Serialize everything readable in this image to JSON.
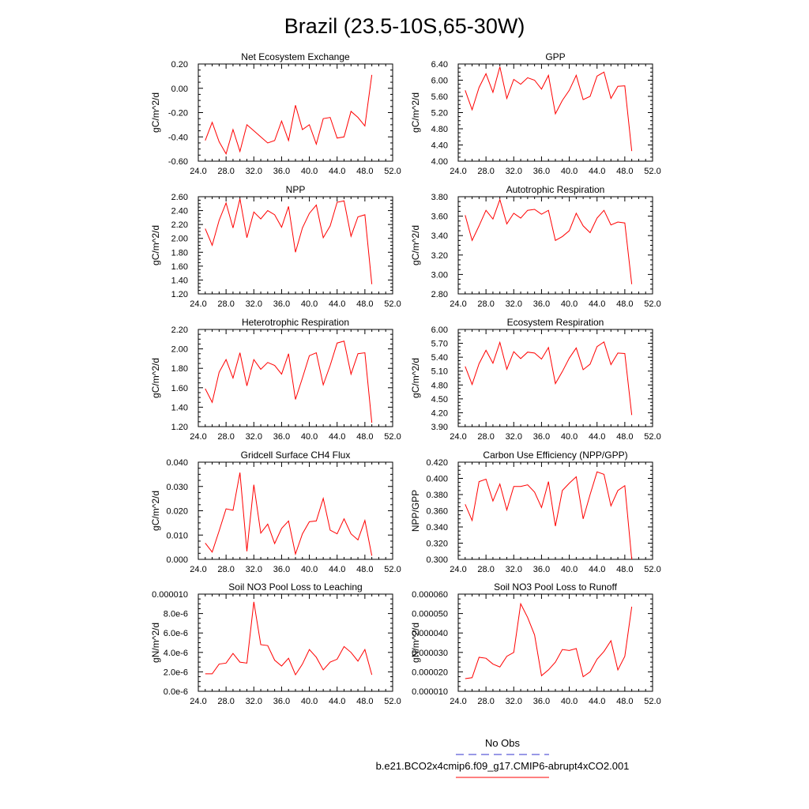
{
  "page": {
    "title": "Brazil (23.5-10S,65-30W)"
  },
  "legend": {
    "obs_label": "No Obs",
    "obs_color": "#3333cc",
    "model_label": "b.e21.BCO2x4cmip6.f09_g17.CMIP6-abrupt4xCO2.001",
    "model_color": "#ff0000"
  },
  "chart_data": [
    {
      "type": "line",
      "title": "Net Ecosystem Exchange",
      "ylabel": "gC/m^2/d",
      "xlabel": "",
      "xlim": [
        24,
        52
      ],
      "ylim": [
        -0.6,
        0.2
      ],
      "xticks": [
        "24.0",
        "28.0",
        "32.0",
        "36.0",
        "40.0",
        "44.0",
        "48.0",
        "52.0"
      ],
      "yticks": [
        "-0.60",
        "-0.40",
        "-0.20",
        "0.00",
        "0.20"
      ],
      "x": [
        25,
        26,
        27,
        28,
        29,
        30,
        31,
        32,
        33,
        34,
        35,
        36,
        37,
        38,
        39,
        40,
        41,
        42,
        43,
        44,
        45,
        46,
        47,
        48,
        49
      ],
      "series": [
        {
          "color": "#ff0000",
          "values": [
            -0.43,
            -0.28,
            -0.44,
            -0.54,
            -0.34,
            -0.52,
            -0.3,
            -0.35,
            -0.4,
            -0.45,
            -0.43,
            -0.27,
            -0.43,
            -0.14,
            -0.34,
            -0.3,
            -0.46,
            -0.25,
            -0.24,
            -0.41,
            -0.4,
            -0.19,
            -0.24,
            -0.31,
            0.11
          ]
        }
      ]
    },
    {
      "type": "line",
      "title": "GPP",
      "ylabel": "gC/m^2/d",
      "xlabel": "",
      "xlim": [
        24,
        52
      ],
      "ylim": [
        4.0,
        6.4
      ],
      "xticks": [
        "24.0",
        "28.0",
        "32.0",
        "36.0",
        "40.0",
        "44.0",
        "48.0",
        "52.0"
      ],
      "yticks": [
        "4.00",
        "4.40",
        "4.80",
        "5.20",
        "5.60",
        "6.00",
        "6.40"
      ],
      "x": [
        25,
        26,
        27,
        28,
        29,
        30,
        31,
        32,
        33,
        34,
        35,
        36,
        37,
        38,
        39,
        40,
        41,
        42,
        43,
        44,
        45,
        46,
        47,
        48,
        49
      ],
      "series": [
        {
          "color": "#ff0000",
          "values": [
            5.75,
            5.27,
            5.82,
            6.16,
            5.7,
            6.33,
            5.55,
            6.02,
            5.9,
            6.06,
            6.0,
            5.78,
            6.12,
            5.17,
            5.5,
            5.75,
            6.12,
            5.52,
            5.6,
            6.1,
            6.2,
            5.55,
            5.85,
            5.86,
            4.25
          ]
        }
      ]
    },
    {
      "type": "line",
      "title": "NPP",
      "ylabel": "gC/m^2/d",
      "xlabel": "",
      "xlim": [
        24,
        52
      ],
      "ylim": [
        1.2,
        2.6
      ],
      "xticks": [
        "24.0",
        "28.0",
        "32.0",
        "36.0",
        "40.0",
        "44.0",
        "48.0",
        "52.0"
      ],
      "yticks": [
        "1.20",
        "1.40",
        "1.60",
        "1.80",
        "2.00",
        "2.20",
        "2.40",
        "2.60"
      ],
      "x": [
        25,
        26,
        27,
        28,
        29,
        30,
        31,
        32,
        33,
        34,
        35,
        36,
        37,
        38,
        39,
        40,
        41,
        42,
        43,
        44,
        45,
        46,
        47,
        48,
        49
      ],
      "series": [
        {
          "color": "#ff0000",
          "values": [
            2.14,
            1.9,
            2.26,
            2.51,
            2.15,
            2.57,
            2.01,
            2.38,
            2.28,
            2.4,
            2.34,
            2.16,
            2.46,
            1.8,
            2.15,
            2.36,
            2.48,
            2.01,
            2.18,
            2.52,
            2.54,
            2.03,
            2.31,
            2.34,
            1.34
          ]
        }
      ]
    },
    {
      "type": "line",
      "title": "Autotrophic Respiration",
      "ylabel": "gC/m^2/d",
      "xlabel": "",
      "xlim": [
        24,
        52
      ],
      "ylim": [
        2.8,
        3.8
      ],
      "xticks": [
        "24.0",
        "28.0",
        "32.0",
        "36.0",
        "40.0",
        "44.0",
        "48.0",
        "52.0"
      ],
      "yticks": [
        "2.80",
        "3.00",
        "3.20",
        "3.40",
        "3.60",
        "3.80"
      ],
      "x": [
        25,
        26,
        27,
        28,
        29,
        30,
        31,
        32,
        33,
        34,
        35,
        36,
        37,
        38,
        39,
        40,
        41,
        42,
        43,
        44,
        45,
        46,
        47,
        48,
        49
      ],
      "series": [
        {
          "color": "#ff0000",
          "values": [
            3.61,
            3.35,
            3.5,
            3.66,
            3.57,
            3.77,
            3.52,
            3.63,
            3.58,
            3.66,
            3.67,
            3.62,
            3.66,
            3.35,
            3.39,
            3.45,
            3.63,
            3.5,
            3.43,
            3.58,
            3.66,
            3.51,
            3.54,
            3.53,
            2.9
          ]
        }
      ]
    },
    {
      "type": "line",
      "title": "Heterotrophic Respiration",
      "ylabel": "gC/m^2/d",
      "xlabel": "",
      "xlim": [
        24,
        52
      ],
      "ylim": [
        1.2,
        2.2
      ],
      "xticks": [
        "24.0",
        "28.0",
        "32.0",
        "36.0",
        "40.0",
        "44.0",
        "48.0",
        "52.0"
      ],
      "yticks": [
        "1.20",
        "1.40",
        "1.60",
        "1.80",
        "2.00",
        "2.20"
      ],
      "x": [
        25,
        26,
        27,
        28,
        29,
        30,
        31,
        32,
        33,
        34,
        35,
        36,
        37,
        38,
        39,
        40,
        41,
        42,
        43,
        44,
        45,
        46,
        47,
        48,
        49
      ],
      "series": [
        {
          "color": "#ff0000",
          "values": [
            1.59,
            1.45,
            1.76,
            1.89,
            1.7,
            1.96,
            1.62,
            1.89,
            1.79,
            1.86,
            1.83,
            1.74,
            1.95,
            1.48,
            1.7,
            1.93,
            1.96,
            1.63,
            1.83,
            2.06,
            2.08,
            1.74,
            1.95,
            1.96,
            1.24
          ]
        }
      ]
    },
    {
      "type": "line",
      "title": "Ecosystem Respiration",
      "ylabel": "gC/m^2/d",
      "xlabel": "",
      "xlim": [
        24,
        52
      ],
      "ylim": [
        3.9,
        6.0
      ],
      "xticks": [
        "24.0",
        "28.0",
        "32.0",
        "36.0",
        "40.0",
        "44.0",
        "48.0",
        "52.0"
      ],
      "yticks": [
        "3.90",
        "4.20",
        "4.50",
        "4.80",
        "5.10",
        "5.40",
        "5.70",
        "6.00"
      ],
      "x": [
        25,
        26,
        27,
        28,
        29,
        30,
        31,
        32,
        33,
        34,
        35,
        36,
        37,
        38,
        39,
        40,
        41,
        42,
        43,
        44,
        45,
        46,
        47,
        48,
        49
      ],
      "series": [
        {
          "color": "#ff0000",
          "values": [
            5.2,
            4.81,
            5.26,
            5.55,
            5.27,
            5.72,
            5.14,
            5.52,
            5.37,
            5.51,
            5.49,
            5.36,
            5.61,
            4.83,
            5.09,
            5.38,
            5.6,
            5.13,
            5.25,
            5.63,
            5.73,
            5.24,
            5.49,
            5.48,
            4.15
          ]
        }
      ]
    },
    {
      "type": "line",
      "title": "Gridcell Surface CH4 Flux",
      "ylabel": "gC/m^2/d",
      "xlabel": "",
      "xlim": [
        24,
        52
      ],
      "ylim": [
        0.0,
        0.04
      ],
      "xticks": [
        "24.0",
        "28.0",
        "32.0",
        "36.0",
        "40.0",
        "44.0",
        "48.0",
        "52.0"
      ],
      "yticks": [
        "0.000",
        "0.010",
        "0.020",
        "0.030",
        "0.040"
      ],
      "x": [
        25,
        26,
        27,
        28,
        29,
        30,
        31,
        32,
        33,
        34,
        35,
        36,
        37,
        38,
        39,
        40,
        41,
        42,
        43,
        44,
        45,
        46,
        47,
        48,
        49
      ],
      "series": [
        {
          "color": "#ff0000",
          "values": [
            0.0067,
            0.003,
            0.0117,
            0.0208,
            0.0202,
            0.0357,
            0.0033,
            0.0307,
            0.0108,
            0.0145,
            0.0065,
            0.0127,
            0.0158,
            0.0022,
            0.0105,
            0.0155,
            0.0158,
            0.0251,
            0.012,
            0.0105,
            0.0167,
            0.0105,
            0.008,
            0.016,
            0.0015
          ]
        }
      ]
    },
    {
      "type": "line",
      "title": "Carbon Use Efficiency (NPP/GPP)",
      "ylabel": "NPP/GPP",
      "xlabel": "",
      "xlim": [
        24,
        52
      ],
      "ylim": [
        0.3,
        0.42
      ],
      "xticks": [
        "24.0",
        "28.0",
        "32.0",
        "36.0",
        "40.0",
        "44.0",
        "48.0",
        "52.0"
      ],
      "yticks": [
        "0.300",
        "0.320",
        "0.340",
        "0.360",
        "0.380",
        "0.400",
        "0.420"
      ],
      "x": [
        25,
        26,
        27,
        28,
        29,
        30,
        31,
        32,
        33,
        34,
        35,
        36,
        37,
        38,
        39,
        40,
        41,
        42,
        43,
        44,
        45,
        46,
        47,
        48,
        49
      ],
      "series": [
        {
          "color": "#ff0000",
          "values": [
            0.368,
            0.348,
            0.396,
            0.399,
            0.372,
            0.393,
            0.361,
            0.39,
            0.39,
            0.392,
            0.383,
            0.364,
            0.396,
            0.341,
            0.385,
            0.394,
            0.402,
            0.35,
            0.38,
            0.408,
            0.405,
            0.366,
            0.385,
            0.391,
            0.3
          ]
        }
      ]
    },
    {
      "type": "line",
      "title": "Soil NO3 Pool Loss to Leaching",
      "ylabel": "gN/m^2/d",
      "xlabel": "",
      "xlim": [
        24,
        52
      ],
      "ylim": [
        0,
        1e-05
      ],
      "xticks": [
        "24.0",
        "28.0",
        "32.0",
        "36.0",
        "40.0",
        "44.0",
        "48.0",
        "52.0"
      ],
      "yticks": [
        "0.0e-6",
        "2.0e-6",
        "4.0e-6",
        "6.0e-6",
        "8.0e-6",
        "0.000010"
      ],
      "x": [
        25,
        26,
        27,
        28,
        29,
        30,
        31,
        32,
        33,
        34,
        35,
        36,
        37,
        38,
        39,
        40,
        41,
        42,
        43,
        44,
        45,
        46,
        47,
        48,
        49
      ],
      "series": [
        {
          "color": "#ff0000",
          "values": [
            1.8e-06,
            1.8e-06,
            2.8e-06,
            2.9e-06,
            3.9e-06,
            3e-06,
            2.9e-06,
            9.2e-06,
            4.8e-06,
            4.7e-06,
            3.2e-06,
            2.6e-06,
            3.4e-06,
            1.7e-06,
            2.8e-06,
            4.3e-06,
            3.5e-06,
            2.2e-06,
            3e-06,
            3.3e-06,
            4.6e-06,
            4e-06,
            3.1e-06,
            4.3e-06,
            1.7e-06
          ]
        }
      ]
    },
    {
      "type": "line",
      "title": "Soil NO3 Pool Loss to Runoff",
      "ylabel": "gN/m^2/d",
      "xlabel": "",
      "xlim": [
        24,
        52
      ],
      "ylim": [
        1e-05,
        6e-05
      ],
      "xticks": [
        "24.0",
        "28.0",
        "32.0",
        "36.0",
        "40.0",
        "44.0",
        "48.0",
        "52.0"
      ],
      "yticks": [
        "0.000010",
        "0.000020",
        "0.000030",
        "0.000040",
        "0.000050",
        "0.000060"
      ],
      "x": [
        25,
        26,
        27,
        28,
        29,
        30,
        31,
        32,
        33,
        34,
        35,
        36,
        37,
        38,
        39,
        40,
        41,
        42,
        43,
        44,
        45,
        46,
        47,
        48,
        49
      ],
      "series": [
        {
          "color": "#ff0000",
          "values": [
            1.65e-05,
            1.7e-05,
            2.75e-05,
            2.7e-05,
            2.4e-05,
            2.25e-05,
            2.8e-05,
            3e-05,
            5.5e-05,
            4.8e-05,
            3.9e-05,
            1.8e-05,
            2.1e-05,
            2.5e-05,
            3.15e-05,
            3.1e-05,
            3.2e-05,
            1.75e-05,
            2e-05,
            2.65e-05,
            3.05e-05,
            3.6e-05,
            2.1e-05,
            2.8e-05,
            5.35e-05
          ]
        }
      ]
    }
  ]
}
